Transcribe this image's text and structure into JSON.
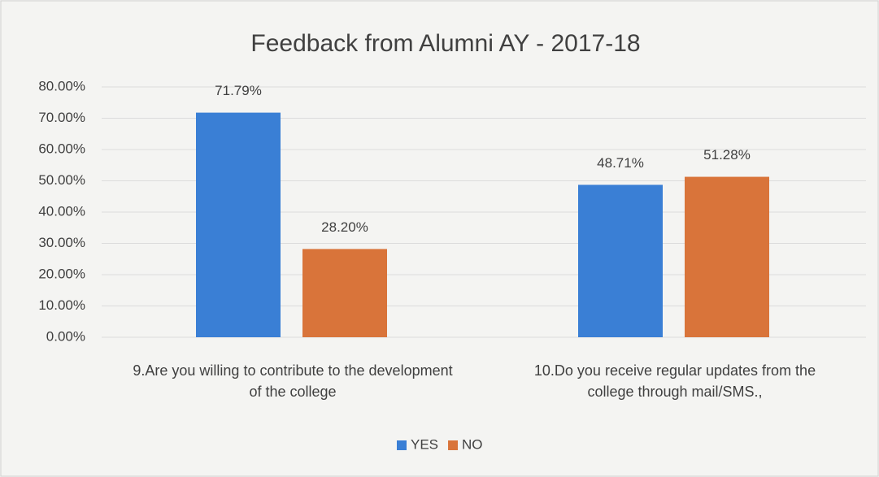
{
  "chart_data": {
    "type": "bar",
    "title": "Feedback from Alumni AY - 2017-18",
    "categories": [
      "9.Are you willing to contribute to the development of the college",
      "10.Do you receive regular updates from the college through mail/SMS.,"
    ],
    "series": [
      {
        "name": "YES",
        "color": "#3a7fd5",
        "values": [
          71.79,
          48.71
        ],
        "value_labels": [
          "71.79%",
          "48.71%"
        ]
      },
      {
        "name": "NO",
        "color": "#d9743a",
        "values": [
          28.2,
          51.28
        ],
        "value_labels": [
          "28.20%",
          "51.28%"
        ]
      }
    ],
    "ylim": [
      0,
      80
    ],
    "yticks": [
      {
        "value": 0,
        "label": "0.00%"
      },
      {
        "value": 10,
        "label": "10.00%"
      },
      {
        "value": 20,
        "label": "20.00%"
      },
      {
        "value": 30,
        "label": "30.00%"
      },
      {
        "value": 40,
        "label": "40.00%"
      },
      {
        "value": 50,
        "label": "50.00%"
      },
      {
        "value": 60,
        "label": "60.00%"
      },
      {
        "value": 70,
        "label": "70.00%"
      },
      {
        "value": 80,
        "label": "80.00%"
      }
    ],
    "grid": true,
    "legend": "bottom"
  }
}
